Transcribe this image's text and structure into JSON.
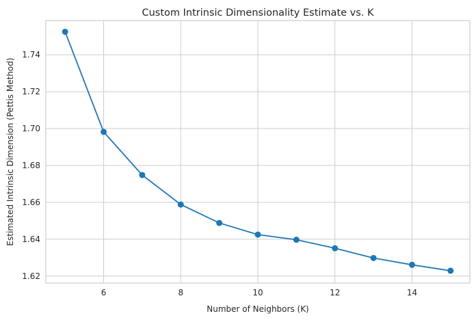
{
  "chart_data": {
    "type": "line",
    "title": "Custom Intrinsic Dimensionality Estimate vs. K",
    "xlabel": "Number of Neighbors (K)",
    "ylabel": "Estimated Intrinsic Dimension (Pettis Method)",
    "x": [
      5,
      6,
      7,
      8,
      9,
      10,
      11,
      12,
      13,
      14,
      15
    ],
    "series": [
      {
        "values": [
          1.7525,
          1.6982,
          1.6748,
          1.6588,
          1.6488,
          1.6425,
          1.6397,
          1.6351,
          1.6298,
          1.6261,
          1.6229
        ]
      }
    ],
    "xlim": [
      4.5,
      15.5
    ],
    "ylim": [
      1.6162,
      1.7586
    ],
    "xticks": [
      6,
      8,
      10,
      12,
      14
    ],
    "yticks": [
      1.62,
      1.64,
      1.66,
      1.68,
      1.7,
      1.72,
      1.74
    ],
    "xtick_labels": [
      "6",
      "8",
      "10",
      "12",
      "14"
    ],
    "ytick_labels": [
      "1.62",
      "1.64",
      "1.66",
      "1.68",
      "1.70",
      "1.72",
      "1.74"
    ],
    "grid": true,
    "line_color": "#1f77b4",
    "marker": "circle"
  }
}
